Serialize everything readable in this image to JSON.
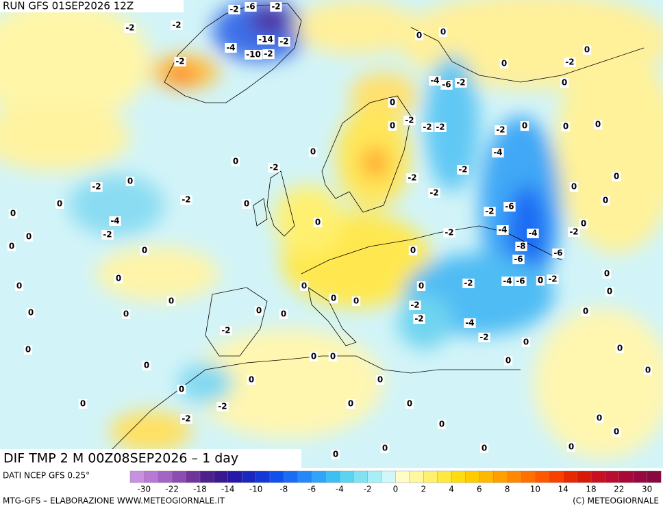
{
  "header": {
    "run": "RUN GFS 01SEP2026 12Z"
  },
  "map": {
    "title": "DIF TMP 2 M 00Z08SEP2026 – 1 day",
    "contour_labels": [
      -2,
      -2,
      -6,
      -2,
      -4,
      -14,
      -2,
      -10,
      -2,
      -2,
      -2,
      0,
      0,
      -4,
      -6,
      -2,
      0,
      -2,
      0,
      0,
      0,
      0,
      -2,
      -2,
      -2,
      -2,
      0,
      0,
      0,
      0,
      0,
      -2,
      -2,
      0,
      -2,
      -4,
      -2,
      0,
      0,
      0,
      0,
      0,
      0,
      0,
      -2,
      -2,
      -2,
      -4,
      -2,
      -6,
      -4,
      -4,
      -2,
      -8,
      -6,
      -6,
      -2,
      0,
      0,
      -2,
      -4,
      -6,
      0,
      -2,
      -4,
      -2,
      -2,
      -2,
      -2,
      -2,
      -2,
      0,
      0,
      0,
      0,
      0,
      0,
      0,
      0,
      0,
      0,
      0,
      0,
      0,
      0,
      0,
      0,
      0,
      0,
      0,
      0,
      0,
      0,
      0,
      0,
      0,
      0,
      0,
      0,
      0,
      0,
      0,
      0,
      0,
      0,
      0,
      0,
      0,
      0
    ]
  },
  "colorbar": {
    "source": "DATI NCEP GFS 0.25°",
    "colors": [
      "#c890e0",
      "#b878d4",
      "#a464c4",
      "#8c4cb0",
      "#70349c",
      "#50208c",
      "#3a1890",
      "#2818a8",
      "#1a28c0",
      "#1438d8",
      "#1050ec",
      "#1a6cf4",
      "#2488f8",
      "#30a4f8",
      "#3cc0f4",
      "#5ad4f0",
      "#80e2f2",
      "#a8eef6",
      "#d0f8fa",
      "#fffcc8",
      "#fff8a0",
      "#fff070",
      "#ffe840",
      "#ffdc10",
      "#ffcc00",
      "#ffb800",
      "#ffa000",
      "#ff8800",
      "#ff7000",
      "#ff5800",
      "#f84000",
      "#e82800",
      "#d81808",
      "#c81020",
      "#b80c30",
      "#a80838",
      "#980840",
      "#880840"
    ],
    "ticks": [
      -30,
      -22,
      -18,
      -14,
      -10,
      -8,
      -6,
      -4,
      -2,
      0,
      2,
      4,
      6,
      8,
      10,
      14,
      18,
      22,
      30
    ]
  },
  "footer": {
    "left": "MTG-GFS – ELABORAZIONE WWW.METEOGIORNALE.IT",
    "right": "(C) METEOGIORNALE"
  }
}
